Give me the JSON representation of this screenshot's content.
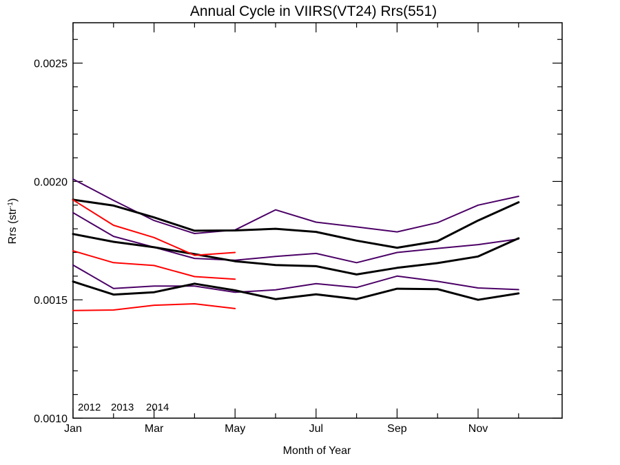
{
  "chart_data": {
    "type": "line",
    "title": "Annual Cycle in VIIRS(VT24) Rrs(551)",
    "xlabel": "Month of Year",
    "ylabel_main": "Rrs (str",
    "ylabel_sup": "-1",
    "ylabel_close": ")",
    "xlim": [
      1,
      13
    ],
    "ylim": [
      0.001,
      0.00267
    ],
    "x_ticks": [
      {
        "value": 1,
        "label": "Jan"
      },
      {
        "value": 3,
        "label": "Mar"
      },
      {
        "value": 5,
        "label": "May"
      },
      {
        "value": 7,
        "label": "Jul"
      },
      {
        "value": 9,
        "label": "Sep"
      },
      {
        "value": 11,
        "label": "Nov"
      }
    ],
    "x_minor_ticks": [
      2,
      4,
      6,
      8,
      10,
      12
    ],
    "y_ticks": [
      {
        "value": 0.001,
        "label": "0.0010"
      },
      {
        "value": 0.0015,
        "label": "0.0015"
      },
      {
        "value": 0.002,
        "label": "0.0020"
      },
      {
        "value": 0.0025,
        "label": "0.0025"
      }
    ],
    "y_minor_ticks": [
      0.0011,
      0.0012,
      0.0013,
      0.0014,
      0.0016,
      0.0017,
      0.0018,
      0.0019,
      0.0021,
      0.0022,
      0.0023,
      0.0024,
      0.0026
    ],
    "grid": false,
    "legend": [
      {
        "label": "2012",
        "color": "#4b0066"
      },
      {
        "label": "2013",
        "color": "#00e676"
      },
      {
        "label": "2014",
        "color": "#ff0000"
      }
    ],
    "series": [
      {
        "color": "#4b0066",
        "width": 2,
        "x": [
          1,
          2,
          3,
          4,
          5,
          6,
          7,
          8,
          9,
          10,
          11,
          12
        ],
        "y": [
          0.00201,
          0.00192,
          0.001835,
          0.00178,
          0.001795,
          0.00188,
          0.001828,
          0.001808,
          0.001787,
          0.001826,
          0.0019,
          0.001937
        ]
      },
      {
        "color": "#4b0066",
        "width": 2,
        "x": [
          1,
          2,
          3,
          4,
          5,
          6,
          7,
          8,
          9,
          10,
          11,
          12
        ],
        "y": [
          0.001868,
          0.001768,
          0.001722,
          0.001675,
          0.001667,
          0.001683,
          0.001696,
          0.001657,
          0.0017,
          0.001717,
          0.001733,
          0.001757
        ]
      },
      {
        "color": "#4b0066",
        "width": 2,
        "x": [
          1,
          2,
          3,
          4,
          5,
          6,
          7,
          8,
          9,
          10,
          11,
          12
        ],
        "y": [
          0.001647,
          0.001548,
          0.001558,
          0.001558,
          0.001532,
          0.001542,
          0.001568,
          0.001552,
          0.0016,
          0.001578,
          0.00155,
          0.001543
        ]
      },
      {
        "color": "#000000",
        "width": 3,
        "x": [
          1,
          2,
          3,
          4,
          5,
          6,
          7,
          8,
          9,
          10,
          11,
          12
        ],
        "y": [
          0.001923,
          0.001898,
          0.001848,
          0.001792,
          0.001793,
          0.0018,
          0.001787,
          0.00175,
          0.00172,
          0.001748,
          0.001835,
          0.001912
        ]
      },
      {
        "color": "#000000",
        "width": 3,
        "x": [
          1,
          2,
          3,
          4,
          5,
          6,
          7,
          8,
          9,
          10,
          11,
          12
        ],
        "y": [
          0.001778,
          0.001745,
          0.001722,
          0.001693,
          0.001663,
          0.001647,
          0.001642,
          0.001607,
          0.001635,
          0.001655,
          0.001683,
          0.00176
        ]
      },
      {
        "color": "#000000",
        "width": 3,
        "x": [
          1,
          2,
          3,
          4,
          5,
          6,
          7,
          8,
          9,
          10,
          11,
          12
        ],
        "y": [
          0.001577,
          0.001522,
          0.001532,
          0.001568,
          0.00154,
          0.001503,
          0.001523,
          0.001503,
          0.001547,
          0.001545,
          0.0015,
          0.001527
        ]
      },
      {
        "color": "#ff0000",
        "width": 2,
        "x": [
          1,
          2,
          3,
          4,
          5
        ],
        "y": [
          0.001922,
          0.001815,
          0.001763,
          0.001688,
          0.0017
        ]
      },
      {
        "color": "#ff0000",
        "width": 2,
        "x": [
          1,
          2,
          3,
          4,
          5
        ],
        "y": [
          0.001707,
          0.001657,
          0.001645,
          0.001598,
          0.001587
        ]
      },
      {
        "color": "#ff0000",
        "width": 2,
        "x": [
          1,
          2,
          3,
          4,
          5
        ],
        "y": [
          0.001455,
          0.001457,
          0.001477,
          0.001483,
          0.001463
        ]
      }
    ]
  }
}
